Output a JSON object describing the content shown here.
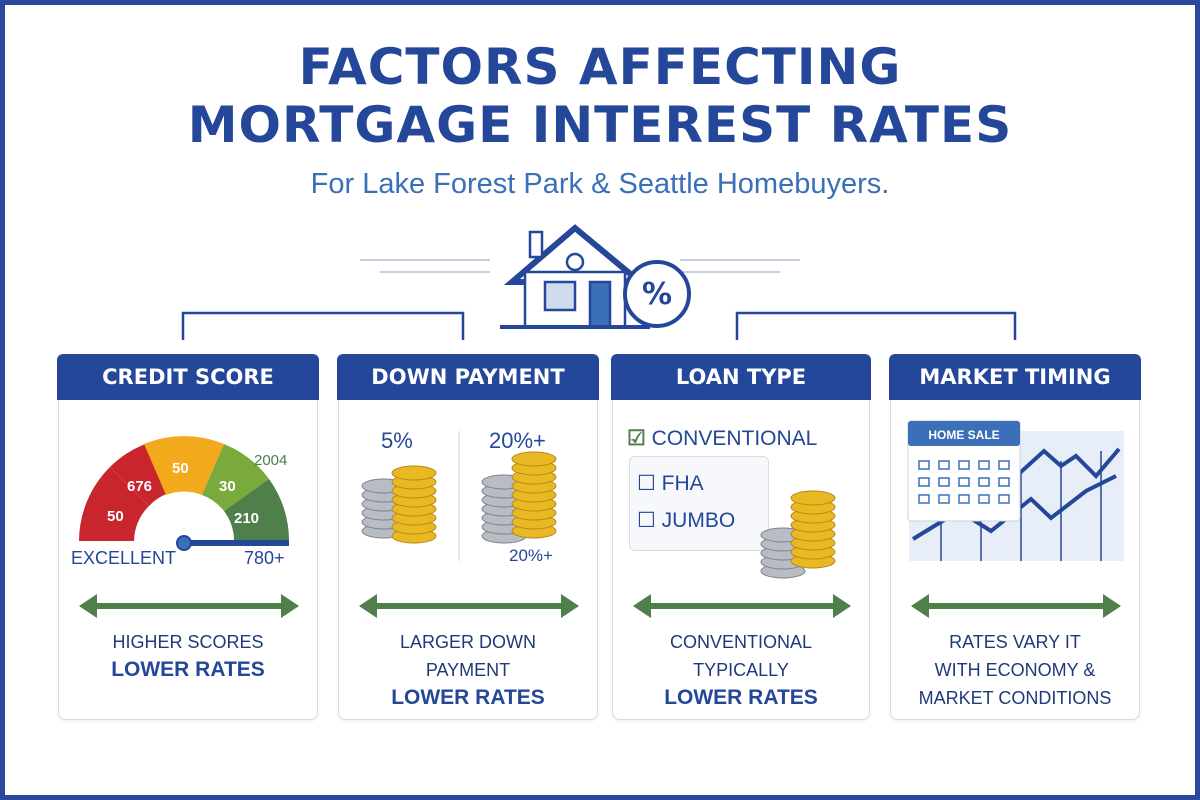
{
  "header": {
    "title_line1": "FACTORS AFFECTING",
    "title_line2": "MORTGAGE INTEREST RATES",
    "subtitle": "For Lake Forest Park & Seattle Homebuyers."
  },
  "colors": {
    "navy": "#24479a",
    "green": "#4f7f4a",
    "red": "#c8252c",
    "orange": "#f2a91c",
    "lightgreen": "#7aaa3c",
    "gold": "#e9b923"
  },
  "icons": {
    "hero": "house-percent-icon"
  },
  "cards": [
    {
      "title": "CREDIT SCORE",
      "gauge_labels": [
        "50",
        "676",
        "50",
        "30",
        "210",
        "2004"
      ],
      "label_left": "EXCELLENT",
      "label_right": "780+",
      "text_lines": [
        "HIGHER SCORES"
      ],
      "emphasis": "LOWER RATES"
    },
    {
      "title": "DOWN PAYMENT",
      "left_pct": "5%",
      "right_pct": "20%+",
      "bottom_pct": "20%+",
      "text_lines": [
        "LARGER DOWN",
        "PAYMENT"
      ],
      "emphasis": "LOWER RATES"
    },
    {
      "title": "LOAN TYPE",
      "options": [
        {
          "label": "CONVENTIONAL",
          "checked": true
        },
        {
          "label": "FHA",
          "checked": false
        },
        {
          "label": "JUMBO",
          "checked": false
        }
      ],
      "text_lines": [
        "CONVENTIONAL",
        "TYPICALLY"
      ],
      "emphasis": "LOWER RATES"
    },
    {
      "title": "MARKET TIMING",
      "calendar_label": "HOME SALE",
      "text_lines": [
        "RATES VARY IT",
        "WITH ECONOMY &",
        "MARKET CONDITIONS"
      ],
      "emphasis": ""
    }
  ]
}
